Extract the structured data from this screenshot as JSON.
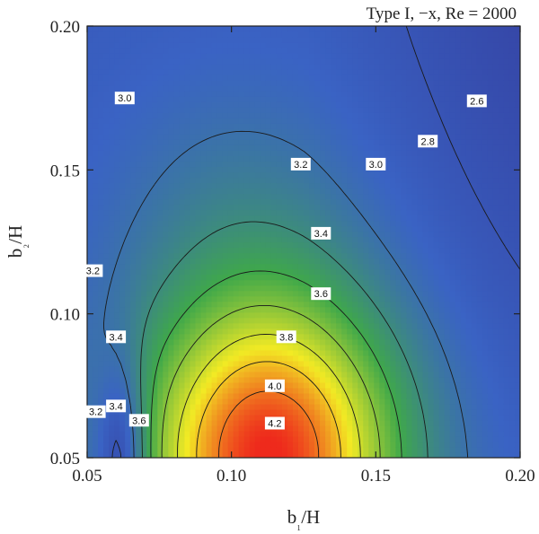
{
  "chart_data": {
    "type": "heatmap",
    "title": "Type I, −x, Re = 2000",
    "xlabel": "b₁/H",
    "ylabel": "b₂/H",
    "xlim": [
      0.05,
      0.2
    ],
    "ylim": [
      0.05,
      0.2
    ],
    "x_ticks": [
      "0.05",
      "0.10",
      "0.15",
      "0.20"
    ],
    "y_ticks": [
      "0.05",
      "0.10",
      "0.15",
      "0.20"
    ],
    "colormap": [
      "#2e1a7a",
      "#3a63c4",
      "#3fa84a",
      "#f2ea24",
      "#ee2a1c"
    ],
    "value_range": [
      2.4,
      4.4
    ],
    "contour_levels": [
      2.6,
      2.8,
      3.0,
      3.2,
      3.4,
      3.6,
      3.8,
      4.0,
      4.2
    ],
    "contour_labels": [
      {
        "text": "3.0",
        "x": 0.063,
        "y": 0.175
      },
      {
        "text": "2.6",
        "x": 0.185,
        "y": 0.174
      },
      {
        "text": "2.8",
        "x": 0.168,
        "y": 0.16
      },
      {
        "text": "3.2",
        "x": 0.124,
        "y": 0.152
      },
      {
        "text": "3.0",
        "x": 0.15,
        "y": 0.152
      },
      {
        "text": "3.4",
        "x": 0.131,
        "y": 0.128
      },
      {
        "text": "3.2",
        "x": 0.052,
        "y": 0.115
      },
      {
        "text": "3.6",
        "x": 0.131,
        "y": 0.107
      },
      {
        "text": "3.4",
        "x": 0.06,
        "y": 0.092
      },
      {
        "text": "3.8",
        "x": 0.119,
        "y": 0.092
      },
      {
        "text": "4.0",
        "x": 0.115,
        "y": 0.075
      },
      {
        "text": "3.4",
        "x": 0.06,
        "y": 0.068
      },
      {
        "text": "3.2",
        "x": 0.053,
        "y": 0.066
      },
      {
        "text": "3.6",
        "x": 0.068,
        "y": 0.063
      },
      {
        "text": "4.2",
        "x": 0.115,
        "y": 0.062
      }
    ]
  }
}
